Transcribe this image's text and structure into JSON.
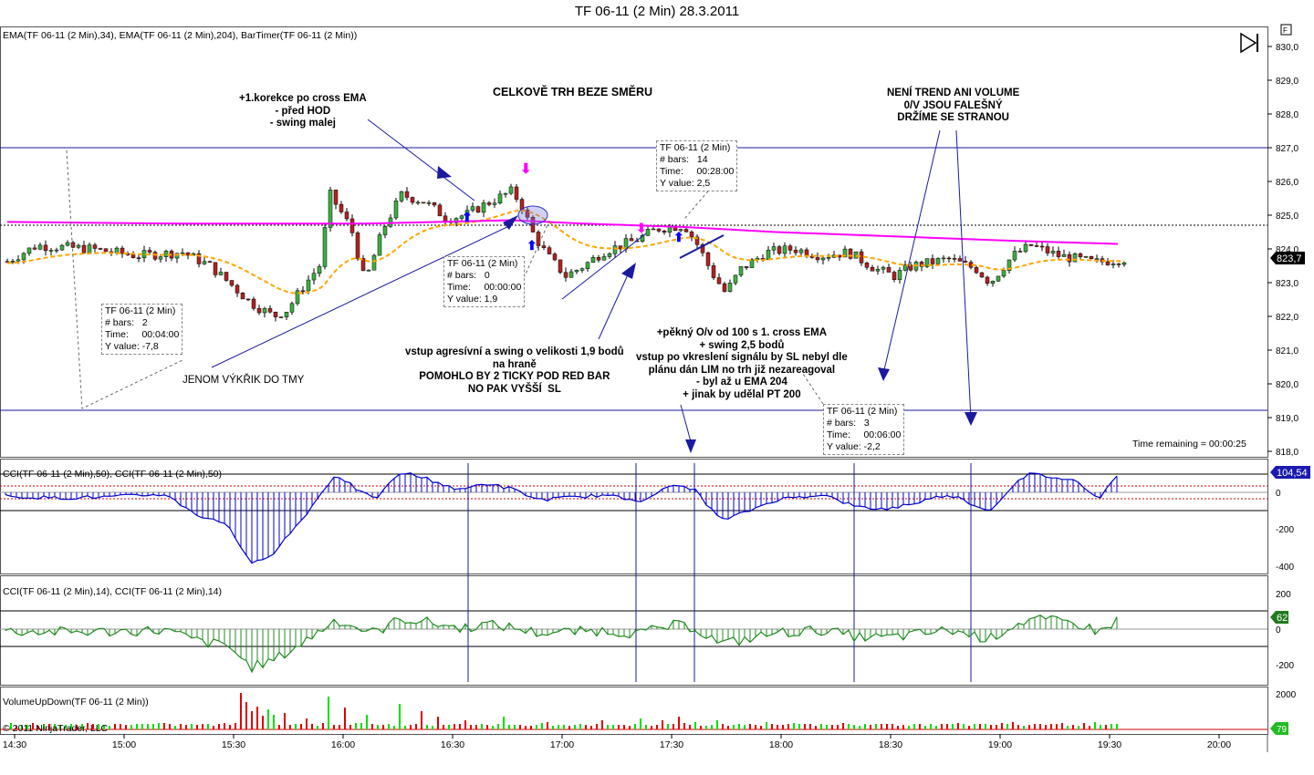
{
  "window": {
    "title": "TF 06-11 (2 Min)  28.3.2011"
  },
  "panels": {
    "price_label": "EMA(TF 06-11 (2 Min),34), EMA(TF 06-11 (2 Min),204), BarTimer(TF 06-11 (2 Min))",
    "cci50_label": "CCI(TF 06-11 (2 Min),50), CCI(TF 06-11 (2 Min),50)",
    "cci14_label": "CCI(TF 06-11 (2 Min),14), CCI(TF 06-11 (2 Min),14)",
    "volume_label": "VolumeUpDown(TF 06-11 (2 Min))",
    "copyright": "© 2011 NinjaTrader, LLC",
    "time_remaining": "Time remaining = 00:00:25",
    "toolbar_f": "F"
  },
  "axes": {
    "price_ticks": [
      "830,0",
      "829,0",
      "828,0",
      "827,0",
      "826,0",
      "825,0",
      "824,0",
      "823,0",
      "822,0",
      "821,0",
      "820,0",
      "819,0",
      "818,0"
    ],
    "cci50_ticks": [
      "0",
      "-200",
      "-400"
    ],
    "cci14_ticks": [
      "200",
      "0",
      "-200"
    ],
    "volume_ticks": [
      "2000"
    ],
    "time_ticks": [
      "14:30",
      "15:00",
      "15:30",
      "16:00",
      "16:30",
      "17:00",
      "17:30",
      "18:00",
      "18:30",
      "19:00",
      "19:30",
      "20:00"
    ]
  },
  "badges": {
    "last_price": "823,7",
    "cci50_value": "104,54",
    "cci14_value": "62",
    "volume_value": "79"
  },
  "colors": {
    "ema34": "#ffa500",
    "ema204": "#ff00ff",
    "up_bar": "#3cb043",
    "down_bar": "#b22222",
    "cci50": "#0000cd",
    "cci14": "#228b22",
    "volume_up": "#00e000",
    "volume_down": "#e00000"
  },
  "annotations": {
    "a1": "+1.korekce po cross EMA\n- před HOD\n- swing malej",
    "a2": "CELKOVĚ TRH BEZE SMĚRU",
    "a3": "NENÍ TREND ANI VOLUME\n0/V JSOU FALEŠNÝ\nDRŽÍME SE STRANOU",
    "a4": "JENOM VÝKŘIK DO TMY",
    "a5": "vstup agresívní a swing o velikosti 1,9 bodů\nna hraně\nPOMOHLO BY 2 TICKY POD RED BAR\nNO PAK VYŠŠÍ  SL",
    "a6": "+pěkný O/v od 100 s 1. cross EMA\n+ swing 2,5 bodů\nvstup po vkreslení signálu by SL nebyl dle\nplánu dán LIM no trh již nezareagoval\n- byl až u EMA 204\n+ jinak by udělal PT 200"
  },
  "tooltips": {
    "t1": "TF 06-11 (2 Min)\n# bars:   2\nTime:     00:04:00\nY value: -7,8",
    "t2": "TF 06-11 (2 Min)\n# bars:   0\nTime:     00:00:00\nY value: 1,9",
    "t3": "TF 06-11 (2 Min)\n# bars:   14\nTime:     00:28:00\nY value: 2,5",
    "t4": "TF 06-11 (2 Min)\n# bars:   3\nTime:     00:06:00\nY value: -2,2"
  }
}
